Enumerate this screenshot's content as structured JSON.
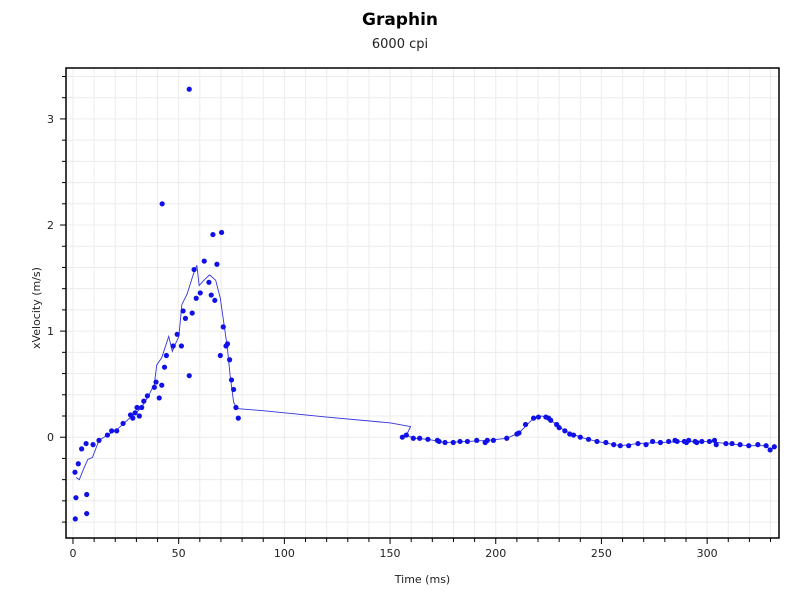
{
  "chart_data": {
    "type": "scatter",
    "title": "Graphin",
    "subtitle": "6000 cpi",
    "xlabel": "Time (ms)",
    "ylabel": "xVelocity (m/s)",
    "xlim": [
      -3.3,
      334
    ],
    "ylim": [
      -0.95,
      3.48
    ],
    "xticks": [
      0,
      50,
      100,
      150,
      200,
      250,
      300
    ],
    "yticks": [
      0,
      1,
      2,
      3
    ],
    "grid": true,
    "colors": {
      "points": "#1010e8",
      "line": "#3333dd",
      "grid": "#ececec"
    },
    "points": [
      [
        0.95,
        -0.33
      ],
      [
        2.5,
        -0.25
      ],
      [
        1.4,
        -0.57
      ],
      [
        1.1,
        -0.77
      ],
      [
        6.5,
        -0.54
      ],
      [
        6.5,
        -0.72
      ],
      [
        4.1,
        -0.11
      ],
      [
        6.2,
        -0.06
      ],
      [
        9.5,
        -0.07
      ],
      [
        12.3,
        -0.03
      ],
      [
        16.3,
        0.02
      ],
      [
        18.3,
        0.06
      ],
      [
        20.7,
        0.06
      ],
      [
        23.7,
        0.13
      ],
      [
        27.2,
        0.21
      ],
      [
        28.3,
        0.18
      ],
      [
        29.4,
        0.23
      ],
      [
        30.3,
        0.28
      ],
      [
        31.4,
        0.2
      ],
      [
        32.5,
        0.28
      ],
      [
        33.5,
        0.34
      ],
      [
        35.2,
        0.39
      ],
      [
        38.5,
        0.47
      ],
      [
        39.3,
        0.52
      ],
      [
        40.8,
        0.37
      ],
      [
        42.0,
        0.49
      ],
      [
        42.2,
        2.2
      ],
      [
        43.3,
        0.66
      ],
      [
        44.2,
        0.77
      ],
      [
        47.4,
        0.86
      ],
      [
        49.3,
        0.97
      ],
      [
        51.3,
        0.86
      ],
      [
        52.1,
        1.19
      ],
      [
        53.2,
        1.12
      ],
      [
        55.0,
        0.58
      ],
      [
        55.0,
        3.28
      ],
      [
        56.4,
        1.17
      ],
      [
        57.3,
        1.58
      ],
      [
        58.3,
        1.31
      ],
      [
        60.2,
        1.36
      ],
      [
        62.1,
        1.66
      ],
      [
        64.3,
        1.46
      ],
      [
        65.4,
        1.34
      ],
      [
        66.2,
        1.91
      ],
      [
        67.1,
        1.29
      ],
      [
        68.1,
        1.63
      ],
      [
        69.7,
        0.77
      ],
      [
        70.3,
        1.93
      ],
      [
        71.1,
        1.04
      ],
      [
        72.4,
        0.86
      ],
      [
        73.1,
        0.88
      ],
      [
        74.1,
        0.73
      ],
      [
        75.0,
        0.54
      ],
      [
        76.0,
        0.45
      ],
      [
        77.1,
        0.28
      ],
      [
        78.2,
        0.18
      ],
      [
        155.8,
        0.0
      ],
      [
        157.7,
        0.02
      ],
      [
        161,
        -0.01
      ],
      [
        164,
        -0.01
      ],
      [
        167.9,
        -0.02
      ],
      [
        172.4,
        -0.03
      ],
      [
        173.2,
        -0.04
      ],
      [
        176,
        -0.05
      ],
      [
        179.9,
        -0.05
      ],
      [
        183.1,
        -0.04
      ],
      [
        186.6,
        -0.04
      ],
      [
        191,
        -0.03
      ],
      [
        195,
        -0.05
      ],
      [
        196,
        -0.03
      ],
      [
        198.9,
        -0.03
      ],
      [
        205.2,
        -0.01
      ],
      [
        210,
        0.03
      ],
      [
        211,
        0.04
      ],
      [
        214.1,
        0.12
      ],
      [
        217.9,
        0.18
      ],
      [
        220.2,
        0.19
      ],
      [
        223.7,
        0.19
      ],
      [
        225,
        0.18
      ],
      [
        226,
        0.16
      ],
      [
        228.8,
        0.12
      ],
      [
        230,
        0.09
      ],
      [
        232.7,
        0.06
      ],
      [
        235,
        0.03
      ],
      [
        236.8,
        0.02
      ],
      [
        240,
        0.0
      ],
      [
        243.9,
        -0.02
      ],
      [
        247.9,
        -0.04
      ],
      [
        252.1,
        -0.05
      ],
      [
        255.8,
        -0.07
      ],
      [
        258.9,
        -0.08
      ],
      [
        262.9,
        -0.08
      ],
      [
        267.3,
        -0.06
      ],
      [
        271.1,
        -0.07
      ],
      [
        274.2,
        -0.04
      ],
      [
        277.9,
        -0.05
      ],
      [
        281.8,
        -0.04
      ],
      [
        284.8,
        -0.03
      ],
      [
        285.8,
        -0.04
      ],
      [
        289.2,
        -0.04
      ],
      [
        290.2,
        -0.05
      ],
      [
        291.3,
        -0.03
      ],
      [
        294.3,
        -0.04
      ],
      [
        295.1,
        -0.05
      ],
      [
        297.5,
        -0.04
      ],
      [
        301.1,
        -0.04
      ],
      [
        303.5,
        -0.03
      ],
      [
        304.3,
        -0.07
      ],
      [
        308.9,
        -0.06
      ],
      [
        311.8,
        -0.06
      ],
      [
        315.6,
        -0.07
      ],
      [
        319.7,
        -0.08
      ],
      [
        324,
        -0.07
      ],
      [
        327.9,
        -0.08
      ],
      [
        329.8,
        -0.12
      ],
      [
        331.8,
        -0.09
      ]
    ],
    "line": [
      [
        1.5,
        -0.38
      ],
      [
        3,
        -0.4
      ],
      [
        5,
        -0.3
      ],
      [
        7,
        -0.21
      ],
      [
        9.2,
        -0.19
      ],
      [
        12.3,
        -0.03
      ],
      [
        16.3,
        0.02
      ],
      [
        20.7,
        0.07
      ],
      [
        24,
        0.13
      ],
      [
        28,
        0.2
      ],
      [
        32,
        0.27
      ],
      [
        35.5,
        0.38
      ],
      [
        38.5,
        0.5
      ],
      [
        39.6,
        0.68
      ],
      [
        42,
        0.75
      ],
      [
        45.3,
        0.95
      ],
      [
        47,
        0.81
      ],
      [
        48.5,
        0.88
      ],
      [
        50.1,
        0.95
      ],
      [
        51.5,
        1.25
      ],
      [
        54,
        1.35
      ],
      [
        57,
        1.54
      ],
      [
        58.6,
        1.62
      ],
      [
        59.7,
        1.43
      ],
      [
        62,
        1.48
      ],
      [
        64.6,
        1.53
      ],
      [
        67.5,
        1.48
      ],
      [
        69.7,
        1.31
      ],
      [
        71.2,
        1.1
      ],
      [
        73,
        0.85
      ],
      [
        74.4,
        0.57
      ],
      [
        76,
        0.33
      ],
      [
        77.6,
        0.27
      ],
      [
        90,
        0.25
      ],
      [
        120,
        0.19
      ],
      [
        150.2,
        0.135
      ],
      [
        159.7,
        0.1
      ],
      [
        157.8,
        0.02
      ],
      [
        161,
        -0.01
      ],
      [
        167.9,
        -0.02
      ],
      [
        176,
        -0.05
      ],
      [
        186.6,
        -0.04
      ],
      [
        196,
        -0.03
      ],
      [
        205.2,
        -0.01
      ],
      [
        211,
        0.04
      ],
      [
        217.9,
        0.18
      ],
      [
        222,
        0.2
      ],
      [
        226,
        0.16
      ],
      [
        232.7,
        0.06
      ],
      [
        240,
        0.0
      ],
      [
        247.9,
        -0.04
      ],
      [
        258.9,
        -0.08
      ],
      [
        267.3,
        -0.06
      ],
      [
        277.9,
        -0.05
      ],
      [
        289.2,
        -0.04
      ],
      [
        301.1,
        -0.04
      ],
      [
        308.9,
        -0.06
      ],
      [
        319.7,
        -0.08
      ],
      [
        327.9,
        -0.08
      ],
      [
        329.8,
        -0.12
      ],
      [
        331.8,
        -0.09
      ]
    ]
  }
}
